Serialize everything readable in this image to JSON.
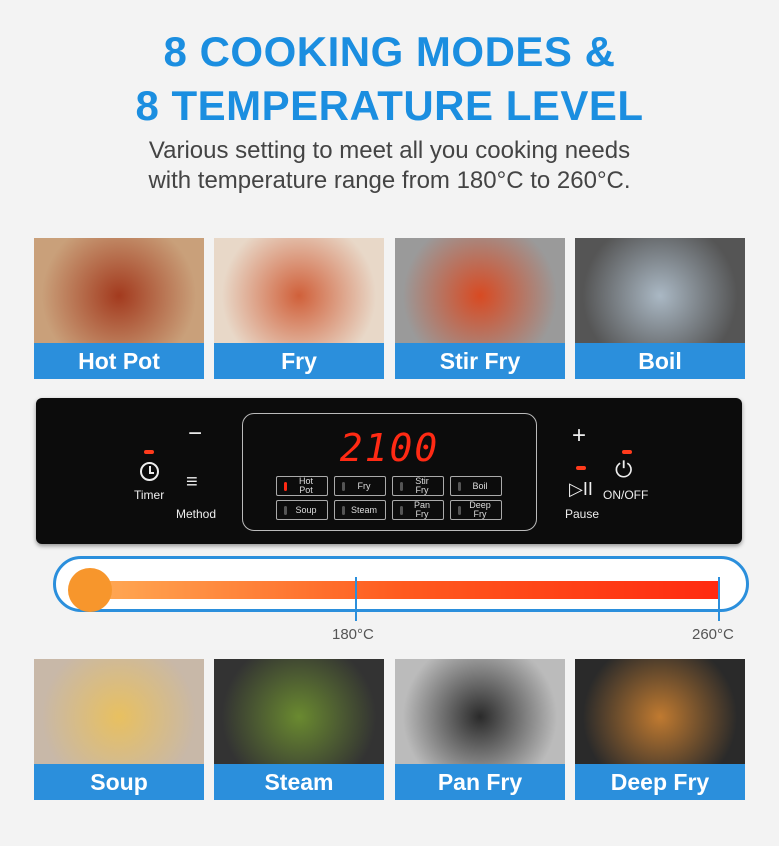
{
  "heading": {
    "line1": "8 COOKING MODES &",
    "line2": "8 TEMPERATURE LEVEL"
  },
  "subtitle": {
    "line1": "Various setting to meet all you cooking needs",
    "line2": "with temperature range from 180°C to 260°C."
  },
  "modes_top": [
    {
      "label": "Hot Pot"
    },
    {
      "label": "Fry"
    },
    {
      "label": "Stir Fry"
    },
    {
      "label": "Boil"
    }
  ],
  "modes_bottom": [
    {
      "label": "Soup"
    },
    {
      "label": "Steam"
    },
    {
      "label": "Pan Fry"
    },
    {
      "label": "Deep Fry"
    }
  ],
  "panel": {
    "display": "2100",
    "timer": "Timer",
    "method": "Method",
    "pause": "Pause",
    "onoff": "ON/OFF",
    "minus": "−",
    "plus": "+",
    "buttons": [
      {
        "l1": "Hot",
        "l2": "Pot",
        "on": true
      },
      {
        "l1": "Fry",
        "l2": ""
      },
      {
        "l1": "Stir",
        "l2": "Fry"
      },
      {
        "l1": "Boil",
        "l2": ""
      },
      {
        "l1": "Soup",
        "l2": ""
      },
      {
        "l1": "Steam",
        "l2": ""
      },
      {
        "l1": "Pan",
        "l2": "Fry"
      },
      {
        "l1": "Deep",
        "l2": "Fry"
      }
    ]
  },
  "temperature": {
    "min_label": "180°C",
    "max_label": "260°C"
  },
  "colors": {
    "accent": "#1b8ee0",
    "label_bg": "#2b8fdc",
    "led": "#ff2a14"
  }
}
